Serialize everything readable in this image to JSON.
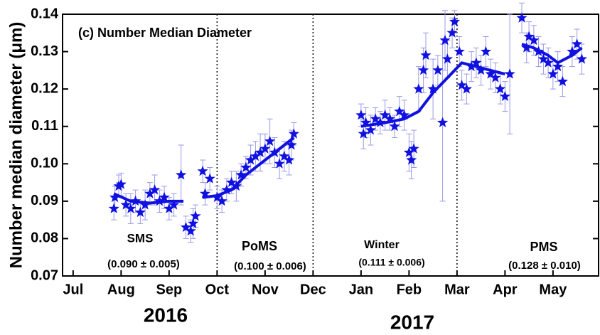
{
  "chart_data": {
    "type": "scatter",
    "ylabel": "Number median diameter (μm)",
    "ylim": [
      0.07,
      0.14
    ],
    "yticks": [
      0.07,
      0.08,
      0.09,
      {
        "value": 0.1,
        "label": "0.10"
      },
      0.11,
      0.12,
      0.13,
      0.14
    ],
    "xlim": [
      -0.22,
      10.95
    ],
    "xticks": [
      {
        "value": 0,
        "label": "Jul"
      },
      {
        "value": 1,
        "label": "Aug"
      },
      {
        "value": 2,
        "label": "Sep"
      },
      {
        "value": 3,
        "label": "Oct"
      },
      {
        "value": 4,
        "label": "Nov"
      },
      {
        "value": 5,
        "label": "Dec"
      },
      {
        "value": 6,
        "label": "Jan"
      },
      {
        "value": 7,
        "label": "Feb"
      },
      {
        "value": 8,
        "label": "Mar"
      },
      {
        "value": 9,
        "label": "Apr"
      },
      {
        "value": 10,
        "label": "May"
      }
    ],
    "years": [
      "2016",
      "2017"
    ],
    "vlines": [
      3,
      5,
      8
    ],
    "annotations": [
      "(c) Number Median Diameter",
      "SMS",
      "(0.090 ± 0.005)",
      "PoMS",
      "(0.100 ± 0.006)",
      "Winter",
      "(0.111 ± 0.006)",
      "PMS",
      "(0.128 ± 0.010)"
    ],
    "color": "#1010e0",
    "errorbar_color": "#9a9ae8",
    "points": {
      "x": [
        0.85,
        0.87,
        0.95,
        1.0,
        1.1,
        1.2,
        1.3,
        1.4,
        1.5,
        1.6,
        1.7,
        1.8,
        1.9,
        2.0,
        2.1,
        2.25,
        2.35,
        2.45,
        2.5,
        2.55,
        2.7,
        2.75,
        2.85,
        3.0,
        3.1,
        3.2,
        3.3,
        3.4,
        3.5,
        3.6,
        3.7,
        3.8,
        3.9,
        4.0,
        4.1,
        4.2,
        4.3,
        4.4,
        4.5,
        4.55,
        4.6,
        6.0,
        6.05,
        6.1,
        6.2,
        6.3,
        6.4,
        6.5,
        6.6,
        6.7,
        6.8,
        6.9,
        7.0,
        7.05,
        7.1,
        7.2,
        7.3,
        7.35,
        7.5,
        7.6,
        7.7,
        7.75,
        7.8,
        7.9,
        7.95,
        8.05,
        8.1,
        8.2,
        8.3,
        8.4,
        8.5,
        8.6,
        8.7,
        8.8,
        8.9,
        9.0,
        9.1,
        9.35,
        9.45,
        9.5,
        9.6,
        9.7,
        9.8,
        9.9,
        10.0,
        10.1,
        10.2,
        10.4,
        10.5,
        10.6
      ],
      "y": [
        0.088,
        0.091,
        0.094,
        0.0945,
        0.089,
        0.088,
        0.09,
        0.087,
        0.089,
        0.092,
        0.093,
        0.09,
        0.091,
        0.088,
        0.089,
        0.097,
        0.083,
        0.082,
        0.084,
        0.086,
        0.098,
        0.092,
        0.096,
        0.091,
        0.09,
        0.093,
        0.095,
        0.094,
        0.097,
        0.099,
        0.101,
        0.102,
        0.103,
        0.104,
        0.106,
        0.103,
        0.1,
        0.102,
        0.101,
        0.105,
        0.108,
        0.113,
        0.108,
        0.111,
        0.109,
        0.112,
        0.111,
        0.113,
        0.112,
        0.11,
        0.114,
        0.113,
        0.103,
        0.101,
        0.104,
        0.12,
        0.125,
        0.129,
        0.12,
        0.125,
        0.111,
        0.133,
        0.128,
        0.135,
        0.138,
        0.13,
        0.121,
        0.12,
        0.126,
        0.127,
        0.125,
        0.13,
        0.124,
        0.123,
        0.12,
        0.118,
        0.124,
        0.139,
        0.131,
        0.134,
        0.133,
        0.13,
        0.128,
        0.127,
        0.124,
        0.126,
        0.122,
        0.13,
        0.132,
        0.128
      ],
      "err": [
        0.003,
        0.003,
        0.003,
        0.003,
        0.003,
        0.004,
        0.003,
        0.003,
        0.004,
        0.003,
        0.004,
        0.003,
        0.003,
        0.003,
        0.003,
        0.008,
        0.003,
        0.003,
        0.004,
        0.003,
        0.003,
        0.003,
        0.003,
        0.003,
        0.003,
        0.003,
        0.003,
        0.004,
        0.003,
        0.003,
        0.004,
        0.004,
        0.005,
        0.004,
        0.006,
        0.004,
        0.004,
        0.004,
        0.004,
        0.004,
        0.003,
        0.003,
        0.004,
        0.004,
        0.004,
        0.003,
        0.003,
        0.004,
        0.003,
        0.003,
        0.004,
        0.004,
        0.005,
        0.005,
        0.005,
        0.006,
        0.006,
        0.006,
        0.008,
        0.004,
        0.021,
        0.008,
        0.005,
        0.004,
        0.003,
        0.004,
        0.004,
        0.004,
        0.004,
        0.004,
        0.004,
        0.004,
        0.004,
        0.004,
        0.004,
        0.004,
        0.016,
        0.004,
        0.004,
        0.004,
        0.004,
        0.004,
        0.004,
        0.004,
        0.004,
        0.004,
        0.004,
        0.004,
        0.004,
        0.004
      ]
    },
    "trend": {
      "x": [
        0.85,
        1.2,
        1.6,
        2.0,
        2.3,
        2.5,
        2.7,
        3.0,
        3.3,
        3.6,
        3.9,
        4.2,
        4.6,
        5.0,
        6.0,
        6.5,
        6.9,
        7.2,
        7.5,
        7.8,
        8.1,
        8.4,
        8.7,
        9.0,
        9.2,
        9.35,
        9.6,
        9.9,
        10.1,
        10.4,
        10.6
      ],
      "y": [
        0.092,
        0.09,
        0.0895,
        0.09,
        0.09,
        null,
        0.091,
        0.0915,
        0.093,
        0.097,
        0.1,
        0.103,
        0.107,
        null,
        0.11,
        0.111,
        0.112,
        0.114,
        0.119,
        0.123,
        0.127,
        0.126,
        0.125,
        0.124,
        null,
        0.132,
        0.131,
        0.129,
        0.127,
        0.129,
        0.131
      ]
    }
  }
}
